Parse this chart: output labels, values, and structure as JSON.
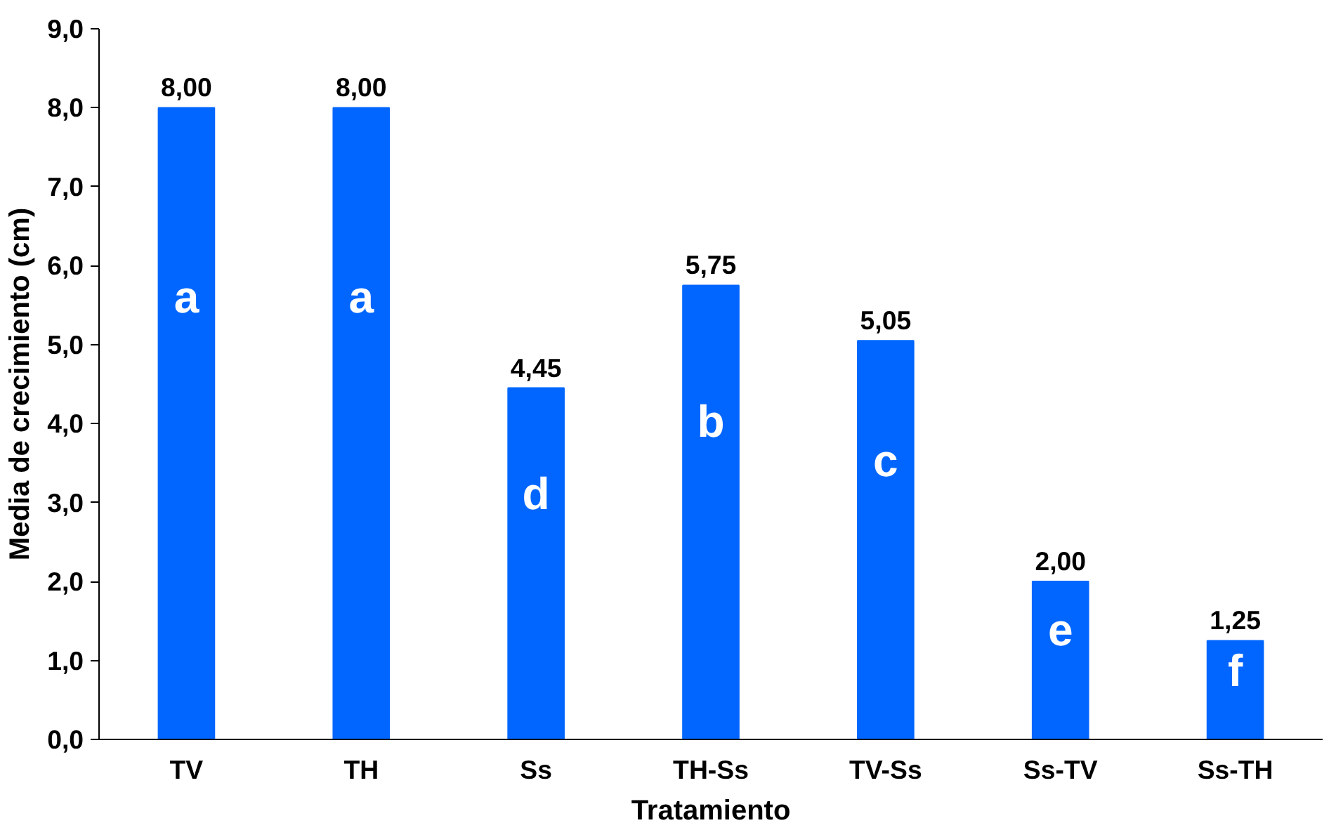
{
  "chart_data": {
    "type": "bar",
    "xlabel": "Tratamiento",
    "ylabel": "Media de crecimiento (cm)",
    "categories": [
      "TV",
      "TH",
      "Ss",
      "TH-Ss",
      "TV-Ss",
      "Ss-TV",
      "Ss-TH"
    ],
    "values": [
      8.0,
      8.0,
      4.45,
      5.75,
      5.05,
      2.0,
      1.25
    ],
    "value_labels": [
      "8,00",
      "8,00",
      "4,45",
      "5,75",
      "5,05",
      "2,00",
      "1,25"
    ],
    "color": "#0066ff",
    "ylim": [
      0,
      9
    ],
    "yticks": [
      {
        "value": 0,
        "label": "0,0"
      },
      {
        "value": 1,
        "label": "1,0"
      },
      {
        "value": 2,
        "label": "2,0"
      },
      {
        "value": 3,
        "label": "3,0"
      },
      {
        "value": 4,
        "label": "4,0"
      },
      {
        "value": 5,
        "label": "5,0"
      },
      {
        "value": 6,
        "label": "6,0"
      },
      {
        "value": 7,
        "label": "7,0"
      },
      {
        "value": 8,
        "label": "8,0"
      },
      {
        "value": 9,
        "label": "9,0"
      }
    ],
    "annotations": [
      "a",
      "a",
      "d",
      "b",
      "c",
      "e",
      "f"
    ],
    "grid": false
  }
}
